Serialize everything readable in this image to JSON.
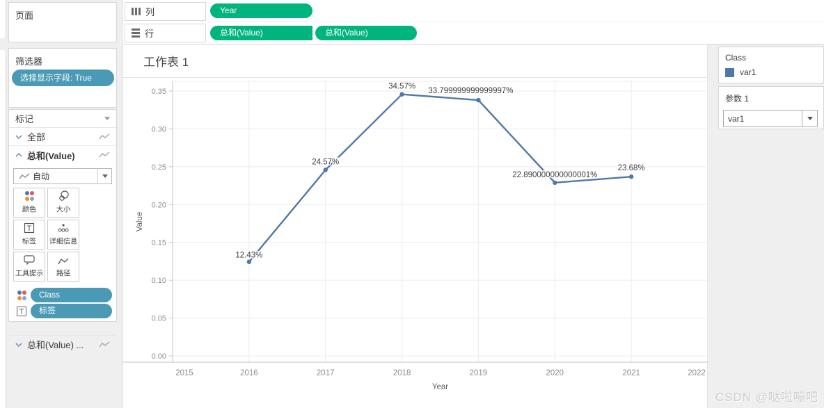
{
  "colors": {
    "green_pill": "#00b47e",
    "blue_pill": "#4a99b5",
    "line": "#4e79a7"
  },
  "pages": {
    "title": "页面"
  },
  "filters": {
    "title": "筛选器",
    "pill": "选择显示字段: True"
  },
  "marks": {
    "title": "标记",
    "all_row": "全部",
    "selected_row": "总和(Value)",
    "mark_type": "自动",
    "buttons": [
      "颜色",
      "大小",
      "标签",
      "详细信息",
      "工具提示",
      "路径"
    ],
    "color_pill": "Class",
    "label_pill": "标签",
    "footer_row": "总和(Value) ..."
  },
  "shelves": {
    "columns_label": "列",
    "rows_label": "行",
    "columns_pills": [
      "Year"
    ],
    "rows_pills": [
      "总和(Value)",
      "总和(Value)"
    ]
  },
  "worksheet": {
    "title": "工作表 1"
  },
  "legend": {
    "title": "Class",
    "items": [
      {
        "label": "var1",
        "color": "#4e79a7"
      }
    ]
  },
  "parameters": {
    "title": "参数 1",
    "value": "var1"
  },
  "watermark": "CSDN @哒啦嘣吧",
  "chart_data": {
    "type": "line",
    "title": "工作表 1",
    "xlabel": "Year",
    "ylabel": "Value",
    "xlim": [
      2015,
      2022
    ],
    "ylim": [
      0,
      0.35
    ],
    "xticks": [
      2015,
      2016,
      2017,
      2018,
      2019,
      2020,
      2021,
      2022
    ],
    "yticks": [
      0.0,
      0.05,
      0.1,
      0.15,
      0.2,
      0.25,
      0.3,
      0.35
    ],
    "grid": true,
    "legend_position": "right",
    "series": [
      {
        "name": "var1",
        "color": "#4e79a7",
        "x": [
          2016,
          2017,
          2018,
          2019,
          2020,
          2021
        ],
        "y": [
          0.1243,
          0.2457,
          0.3457,
          0.33799999999999997,
          0.22890000000000002,
          0.2368
        ],
        "labels": [
          "12.43%",
          "24.57%",
          "34.57%",
          "33.799999999999997%",
          "22.890000000000001%",
          "23.68%"
        ]
      }
    ]
  }
}
